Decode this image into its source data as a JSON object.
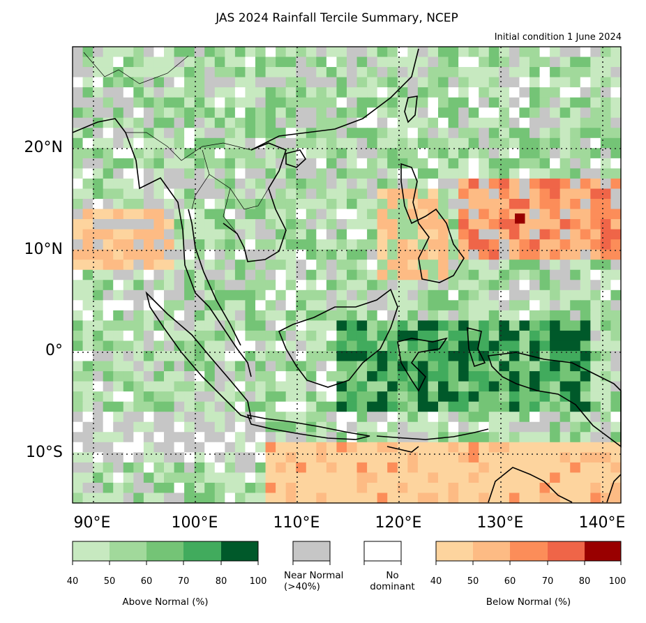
{
  "title": "JAS 2024 Rainfall Tercile Summary, NCEP",
  "subtitle": "Initial condition 1 June 2024",
  "axes": {
    "lat_labels": [
      "20°N",
      "10°N",
      "0°",
      "10°S"
    ],
    "lon_labels": [
      "90°E",
      "100°E",
      "110°E",
      "120°E",
      "130°E",
      "140°E"
    ]
  },
  "legend": {
    "above": {
      "caption": "Above Normal (%)",
      "ticks": [
        "40",
        "50",
        "60",
        "70",
        "80",
        "100"
      ],
      "colors": [
        "#c7e9c0",
        "#a1d99b",
        "#74c476",
        "#41ab5d",
        "#00592a"
      ]
    },
    "near": {
      "caption_line1": "Near Normal",
      "caption_line2": "(>40%)",
      "color": "#c6c6c6"
    },
    "none": {
      "caption_line1": "No",
      "caption_line2": "dominant",
      "color": "#ffffff"
    },
    "below": {
      "caption": "Below Normal (%)",
      "ticks": [
        "40",
        "50",
        "60",
        "70",
        "80",
        "100"
      ],
      "colors": [
        "#fdd49e",
        "#fdbb84",
        "#fc8d59",
        "#ef6548",
        "#990000"
      ]
    }
  }
}
